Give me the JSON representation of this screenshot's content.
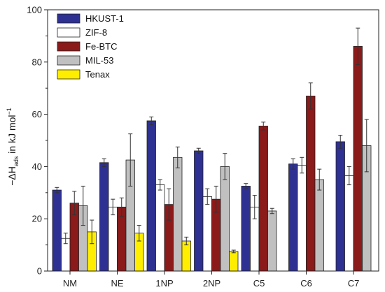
{
  "chart_data": {
    "type": "bar",
    "title": "",
    "xlabel": "",
    "ylabel": {
      "prefix": "−ΔH",
      "subscript": "ads",
      "middle": " in kJ mol",
      "superscript": "−1"
    },
    "ylim": [
      0,
      100
    ],
    "yticks": [
      "0",
      "20",
      "40",
      "60",
      "80",
      "100"
    ],
    "categories": [
      "NM",
      "NE",
      "1NP",
      "2NP",
      "C5",
      "C6",
      "C7"
    ],
    "series": [
      {
        "name": "HKUST-1",
        "color": "#2e3192",
        "values": [
          31,
          41.5,
          57.5,
          46,
          32.5,
          41,
          49.5
        ],
        "errors": [
          1,
          1.5,
          1.5,
          1,
          1,
          2,
          2.5
        ]
      },
      {
        "name": "ZIF-8",
        "color": "#ffffff",
        "values": [
          12.5,
          24.5,
          33,
          28.5,
          24.5,
          40.5,
          36.5
        ],
        "errors": [
          2,
          3,
          2,
          3,
          4.5,
          3,
          3.5
        ]
      },
      {
        "name": "Fe-BTC",
        "color": "#8b1a1a",
        "values": [
          26,
          24.5,
          25.5,
          27.5,
          55.5,
          67,
          86
        ],
        "errors": [
          4.5,
          3.5,
          6,
          5,
          1.5,
          5,
          7
        ]
      },
      {
        "name": "MIL-53",
        "color": "#c0c0c0",
        "values": [
          25,
          42.5,
          43.5,
          40,
          23,
          35,
          48
        ],
        "errors": [
          7.5,
          10,
          4,
          5,
          1,
          4,
          10
        ]
      },
      {
        "name": "Tenax",
        "color": "#ffee00",
        "values": [
          15,
          14.5,
          11.5,
          7.5,
          null,
          null,
          null
        ],
        "errors": [
          4.5,
          3,
          1.5,
          0.5,
          null,
          null,
          null
        ]
      }
    ],
    "grid": false,
    "legend_position": "top-left",
    "colors": {
      "frame": "#222222",
      "error_bar": "#333333"
    }
  }
}
